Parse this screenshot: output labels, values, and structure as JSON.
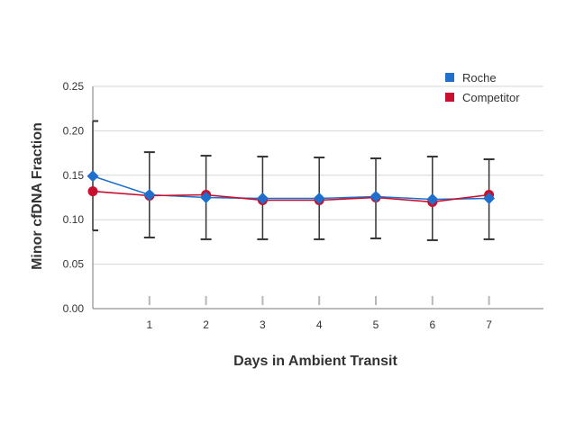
{
  "chart_data": {
    "type": "line",
    "title": "",
    "xlabel": "Days in Ambient Transit",
    "ylabel": "Minor cfDNA Fraction",
    "x": [
      0,
      1,
      2,
      3,
      4,
      5,
      6,
      7
    ],
    "x_tick_labels": [
      "",
      "1",
      "2",
      "3",
      "4",
      "5",
      "6",
      "7"
    ],
    "ylim": [
      0,
      0.25
    ],
    "y_ticks": [
      0,
      0.05,
      0.1,
      0.15,
      0.2,
      0.25
    ],
    "y_tick_labels": [
      "0.00",
      "0.05",
      "0.10",
      "0.15",
      "0.20",
      "0.25"
    ],
    "grid": "horizontal",
    "legend_position": "top-right",
    "series": [
      {
        "name": "Roche",
        "color": "#1f6fcc",
        "marker": "diamond",
        "values": [
          0.149,
          0.128,
          0.125,
          0.124,
          0.124,
          0.126,
          0.123,
          0.124
        ],
        "error_low": [
          0.088,
          0.08,
          0.078,
          0.078,
          0.078,
          0.079,
          0.077,
          0.078
        ],
        "error_high": [
          0.211,
          0.176,
          0.172,
          0.171,
          0.17,
          0.169,
          0.171,
          0.168
        ]
      },
      {
        "name": "Competitor",
        "color": "#c8102e",
        "marker": "circle",
        "values": [
          0.132,
          0.127,
          0.128,
          0.122,
          0.122,
          0.125,
          0.12,
          0.128
        ]
      }
    ]
  }
}
